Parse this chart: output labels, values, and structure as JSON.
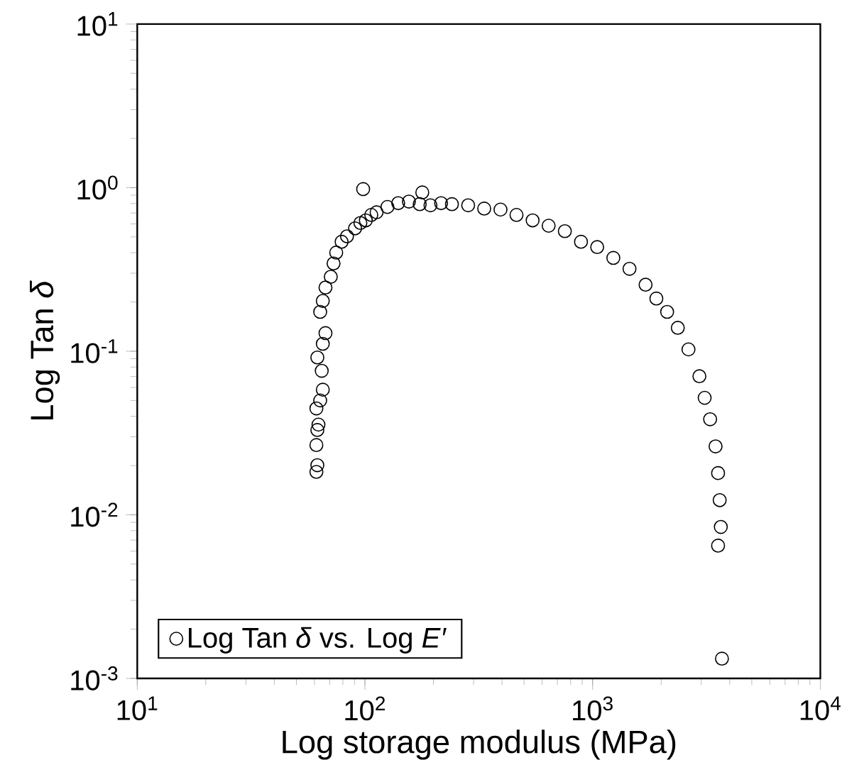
{
  "chart_data": {
    "type": "scatter",
    "xlabel": "Log storage modulus (MPa)",
    "ylabel": "Log Tan *δ*",
    "log": "xy",
    "marker": "circle",
    "legend": "bottom left",
    "grid": false,
    "xlim": [
      10,
      10000
    ],
    "ylim": [
      0.001,
      10
    ],
    "xticks": [
      {
        "value": 10,
        "label": "10$^{1}$"
      },
      {
        "value": 100,
        "label": "10$^{2}$"
      },
      {
        "value": 1000,
        "label": "10$^{3}$"
      },
      {
        "value": 10000,
        "label": "10$^{4}$"
      }
    ],
    "yticks": [
      {
        "value": 0.001,
        "label": "10$^{-3}$"
      },
      {
        "value": 0.01,
        "label": "10$^{-2}$"
      },
      {
        "value": 0.1,
        "label": "10$^{-1}$"
      },
      {
        "value": 1,
        "label": "10$^{0}$"
      },
      {
        "value": 10,
        "label": "10$^{1}$"
      }
    ],
    "series": [
      {
        "name": "Log Tan *δ* vs. Log *E′*",
        "color": "#000000",
        "x": [
          61.2,
          61.8,
          61.2,
          61.8,
          62.5,
          61.2,
          63.6,
          65.3,
          64.6,
          61.8,
          65.3,
          67.1,
          63.6,
          65.3,
          67.1,
          70.8,
          72.8,
          74.8,
          79.0,
          83.4,
          90.5,
          95.5,
          100.9,
          106.6,
          112.5,
          125.5,
          140,
          156,
          174,
          194,
          216,
          241,
          284,
          334,
          394,
          463,
          545,
          641,
          755,
          889,
          1047,
          1233,
          1452,
          1708,
          1905,
          2124,
          2366,
          2636,
          2944,
          3105,
          3281,
          3467,
          3556,
          3614,
          3656,
          3556,
          98.2,
          178.6,
          3698
        ],
        "values": [
          0.0183,
          0.0201,
          0.0267,
          0.033,
          0.0356,
          0.0447,
          0.05,
          0.0582,
          0.0759,
          0.0916,
          0.111,
          0.129,
          0.174,
          0.203,
          0.245,
          0.285,
          0.344,
          0.401,
          0.467,
          0.504,
          0.564,
          0.608,
          0.631,
          0.681,
          0.707,
          0.762,
          0.804,
          0.822,
          0.793,
          0.78,
          0.804,
          0.793,
          0.78,
          0.745,
          0.734,
          0.681,
          0.631,
          0.585,
          0.542,
          0.467,
          0.433,
          0.372,
          0.319,
          0.255,
          0.21,
          0.174,
          0.139,
          0.1026,
          0.0703,
          0.0519,
          0.0384,
          0.0262,
          0.018,
          0.0123,
          0.00843,
          0.00648,
          0.98,
          0.935,
          0.00132
        ]
      }
    ]
  }
}
